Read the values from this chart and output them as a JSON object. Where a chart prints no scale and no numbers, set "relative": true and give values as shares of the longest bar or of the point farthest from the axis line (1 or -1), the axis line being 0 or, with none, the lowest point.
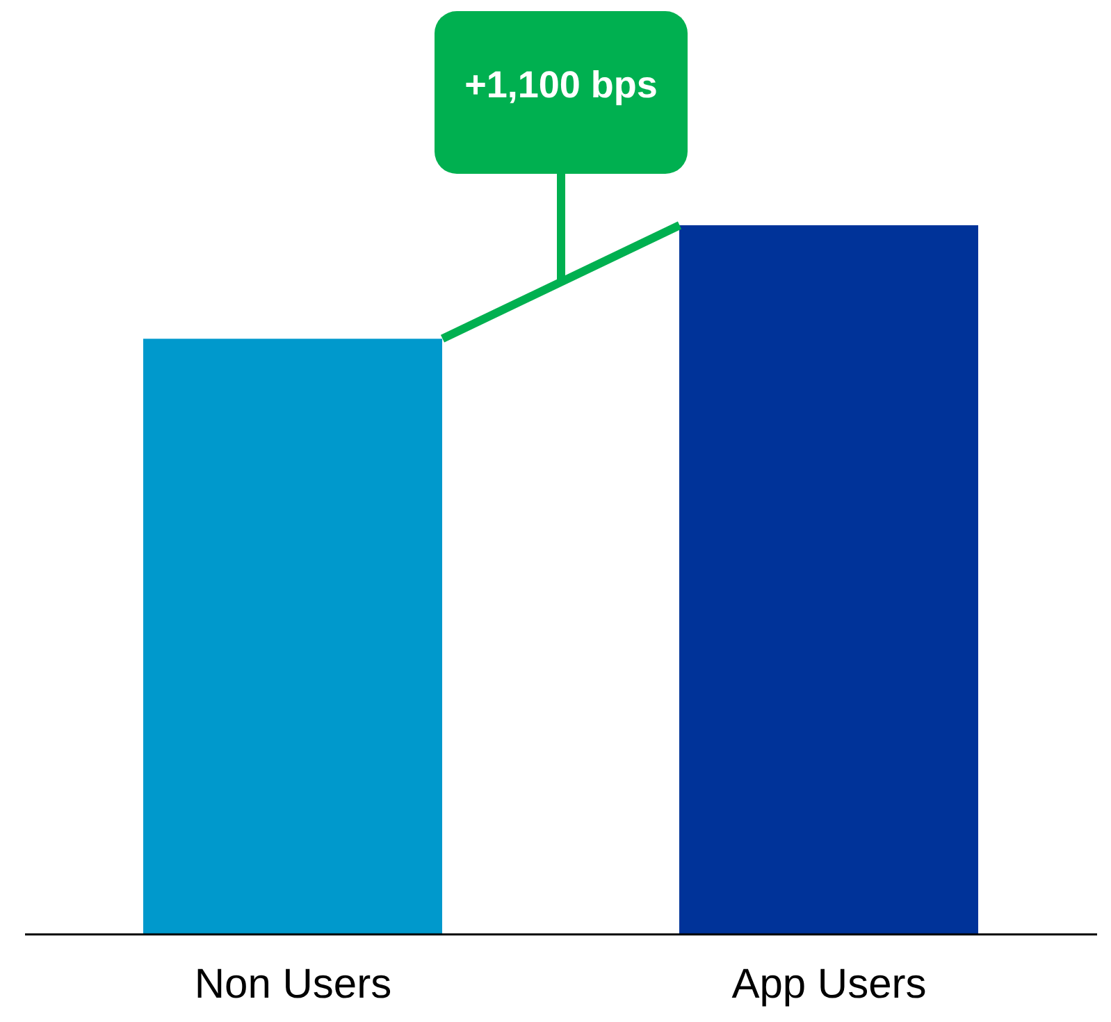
{
  "chart_data": {
    "type": "bar",
    "relative": true,
    "categories": [
      "Non Users",
      "App Users"
    ],
    "values": [
      0.84,
      1
    ],
    "colors": [
      "#0099cc",
      "#003399"
    ],
    "annotations": [
      "+1,100 bps"
    ]
  }
}
